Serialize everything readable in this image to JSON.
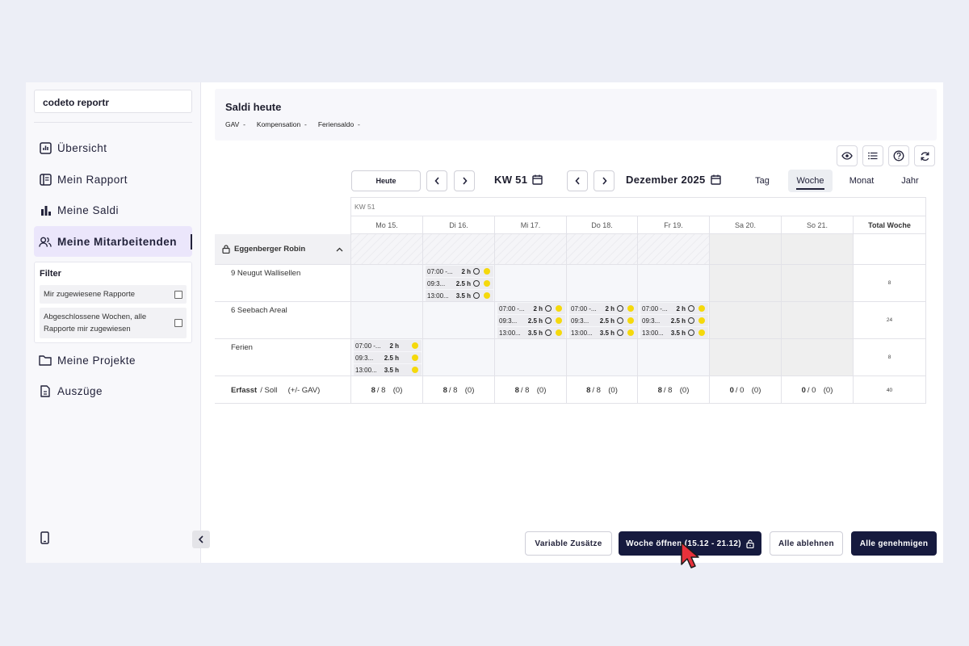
{
  "sidebar": {
    "app_name": "codeto reportr",
    "nav": [
      {
        "label": "Übersicht",
        "icon": "chart-icon"
      },
      {
        "label": "Mein Rapport",
        "icon": "report-icon"
      },
      {
        "label": "Meine Saldi",
        "icon": "bar-chart-icon"
      },
      {
        "label": "Meine Mitarbeitenden",
        "icon": "users-icon"
      },
      {
        "label": "Meine Projekte",
        "icon": "folder-icon"
      },
      {
        "label": "Auszüge",
        "icon": "document-icon"
      }
    ],
    "filter": {
      "title": "Filter",
      "options": [
        "Mir zugewiesene Rapporte",
        "Abgeschlossene Wochen, alle Rapporte mir zugewiesen"
      ]
    }
  },
  "saldi": {
    "title": "Saldi heute",
    "items": [
      {
        "label": "GAV",
        "value": "-"
      },
      {
        "label": "Kompensation",
        "value": "-"
      },
      {
        "label": "Feriensaldo",
        "value": "-"
      }
    ]
  },
  "toolbar": {
    "today": "Heute",
    "week_label": "KW 51",
    "month_label": "Dezember 2025",
    "views": [
      "Tag",
      "Woche",
      "Monat",
      "Jahr"
    ],
    "active_view": "Woche"
  },
  "grid": {
    "week_header": "KW 51",
    "days": [
      "Mo 15.",
      "Di 16.",
      "Mi 17.",
      "Do 18.",
      "Fr 19.",
      "Sa 20.",
      "So 21."
    ],
    "total_header": "Total Woche",
    "person": "Eggenberger Robin",
    "rows": [
      {
        "label": "9 Neugut Wallisellen",
        "total": "8"
      },
      {
        "label": "6 Seebach Areal",
        "total": "24"
      },
      {
        "label": "Ferien",
        "total": "8"
      }
    ],
    "entries": [
      {
        "time": "07:00 -...",
        "dur": "2 h"
      },
      {
        "time": "09:3...",
        "dur": "2.5 h"
      },
      {
        "time": "13:00...",
        "dur": "3.5 h"
      }
    ],
    "summary": {
      "label_bold": "Erfasst",
      "label_rest": "/ Soll",
      "label_extra": "(+/- GAV)",
      "cells": [
        {
          "a": "8",
          "b": "/ 8",
          "c": "(0)"
        },
        {
          "a": "8",
          "b": "/ 8",
          "c": "(0)"
        },
        {
          "a": "8",
          "b": "/ 8",
          "c": "(0)"
        },
        {
          "a": "8",
          "b": "/ 8",
          "c": "(0)"
        },
        {
          "a": "8",
          "b": "/ 8",
          "c": "(0)"
        },
        {
          "a": "0",
          "b": "/ 0",
          "c": "(0)"
        },
        {
          "a": "0",
          "b": "/ 0",
          "c": "(0)"
        }
      ],
      "total": "40"
    }
  },
  "actions": {
    "variable": "Variable Zusätze",
    "open_week": "Woche öffnen (15.12 - 21.12)",
    "reject_all": "Alle ablehnen",
    "approve_all": "Alle genehmigen"
  },
  "colors": {
    "accent_dark": "#161a3e",
    "active_nav_bg": "#ebe6fb",
    "status_dot": "#f5d90c",
    "cursor": "#e8313b"
  }
}
